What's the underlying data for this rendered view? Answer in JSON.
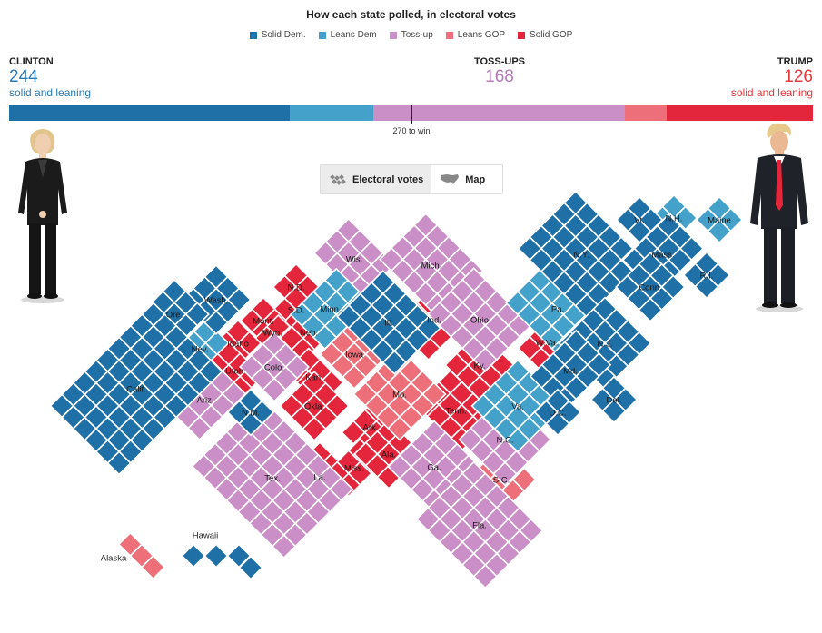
{
  "header": {
    "title": "How each state polled, in electoral votes"
  },
  "legend": [
    {
      "label": "Solid Dem.",
      "color": "#2070a8"
    },
    {
      "label": "Leans Dem",
      "color": "#44a1c9"
    },
    {
      "label": "Toss-up",
      "color": "#c98fc6"
    },
    {
      "label": "Leans GOP",
      "color": "#ec6f7a"
    },
    {
      "label": "Solid GOP",
      "color": "#e3263b"
    }
  ],
  "candidates": {
    "clinton": {
      "name": "CLINTON",
      "votes": "244",
      "sub": "solid and leaning"
    },
    "tossups": {
      "name": "TOSS-UPS",
      "votes": "168"
    },
    "trump": {
      "name": "TRUMP",
      "votes": "126",
      "sub": "solid and leaning"
    }
  },
  "bar_label": "270 to win",
  "toggle": {
    "electoral_votes": "Electoral votes",
    "map": "Map",
    "active": "electoral_votes"
  },
  "chart_data": {
    "type": "cartogram",
    "title": "How each state polled, in electoral votes",
    "total_electoral_votes": 538,
    "threshold": 270,
    "bar_segments": [
      {
        "category": "Solid Dem.",
        "votes": 188
      },
      {
        "category": "Leans Dem",
        "votes": 56
      },
      {
        "category": "Toss-up",
        "votes": 168
      },
      {
        "category": "Leans GOP",
        "votes": 28
      },
      {
        "category": "Solid GOP",
        "votes": 98
      }
    ],
    "states": [
      {
        "label": "N.D.",
        "category": "Solid GOP"
      },
      {
        "label": "S.D.",
        "category": "Solid GOP"
      },
      {
        "label": "Mont.",
        "category": "Solid GOP"
      },
      {
        "label": "Wyo.",
        "category": "Solid GOP"
      },
      {
        "label": "Idaho",
        "category": "Solid GOP"
      },
      {
        "label": "Utah",
        "category": "Solid GOP"
      },
      {
        "label": "Neb.",
        "category": "Solid GOP"
      },
      {
        "label": "Kan.",
        "category": "Solid GOP"
      },
      {
        "label": "Okla.",
        "category": "Solid GOP"
      },
      {
        "label": "Ark.",
        "category": "Solid GOP"
      },
      {
        "label": "La.",
        "category": "Solid GOP"
      },
      {
        "label": "Miss.",
        "category": "Solid GOP"
      },
      {
        "label": "Ala.",
        "category": "Solid GOP"
      },
      {
        "label": "Tenn.",
        "category": "Solid GOP"
      },
      {
        "label": "Ky.",
        "category": "Solid GOP"
      },
      {
        "label": "Ind.",
        "category": "Solid GOP"
      },
      {
        "label": "W.Va.",
        "category": "Solid GOP"
      },
      {
        "label": "Mo.",
        "category": "Leans GOP"
      },
      {
        "label": "Iowa",
        "category": "Leans GOP"
      },
      {
        "label": "S.C.",
        "category": "Leans GOP"
      },
      {
        "label": "Alaska",
        "category": "Leans GOP"
      },
      {
        "label": "Wis.",
        "category": "Toss-up"
      },
      {
        "label": "Mich.",
        "category": "Toss-up"
      },
      {
        "label": "Ohio",
        "category": "Toss-up"
      },
      {
        "label": "Colo.",
        "category": "Toss-up"
      },
      {
        "label": "Ariz.",
        "category": "Toss-up"
      },
      {
        "label": "Tex.",
        "category": "Toss-up"
      },
      {
        "label": "Ga.",
        "category": "Toss-up"
      },
      {
        "label": "N.C.",
        "category": "Toss-up"
      },
      {
        "label": "Fla.",
        "category": "Toss-up"
      },
      {
        "label": "Minn.",
        "category": "Leans Dem"
      },
      {
        "label": "Nev.",
        "category": "Leans Dem"
      },
      {
        "label": "Pa.",
        "category": "Leans Dem"
      },
      {
        "label": "Va.",
        "category": "Leans Dem"
      },
      {
        "label": "Maine",
        "category": "Leans Dem"
      },
      {
        "label": "N.H.",
        "category": "Leans Dem"
      },
      {
        "label": "Wash.",
        "category": "Solid Dem."
      },
      {
        "label": "Ore.",
        "category": "Solid Dem."
      },
      {
        "label": "Calif.",
        "category": "Solid Dem."
      },
      {
        "label": "N.M.",
        "category": "Solid Dem."
      },
      {
        "label": "Ill.",
        "category": "Solid Dem."
      },
      {
        "label": "N.Y.",
        "category": "Solid Dem."
      },
      {
        "label": "Vt.",
        "category": "Solid Dem."
      },
      {
        "label": "Mass.",
        "category": "Solid Dem."
      },
      {
        "label": "Conn.",
        "category": "Solid Dem."
      },
      {
        "label": "R.I.",
        "category": "Solid Dem."
      },
      {
        "label": "N.J.",
        "category": "Solid Dem."
      },
      {
        "label": "Md.",
        "category": "Solid Dem."
      },
      {
        "label": "Del.",
        "category": "Solid Dem."
      },
      {
        "label": "D.C.",
        "category": "Solid Dem."
      },
      {
        "label": "Hawaii",
        "category": "Solid Dem."
      }
    ]
  }
}
